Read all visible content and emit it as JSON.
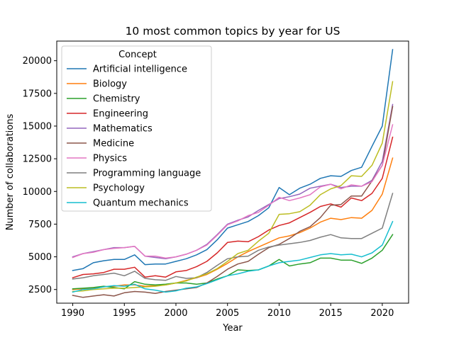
{
  "chart_data": {
    "type": "line",
    "title": "10 most common topics by year for US",
    "xlabel": "Year",
    "ylabel": "Number of collaborations",
    "xlim": [
      1988.45,
      2022.55
    ],
    "ylim": [
      1455,
      21500
    ],
    "xticks": [
      1990,
      1995,
      2000,
      2005,
      2010,
      2015,
      2020
    ],
    "yticks": [
      2500,
      5000,
      7500,
      10000,
      12500,
      15000,
      17500,
      20000
    ],
    "legend": {
      "title": "Concept",
      "position": "upper-left"
    },
    "grid": false,
    "x": [
      1990,
      1991,
      1992,
      1993,
      1994,
      1995,
      1996,
      1997,
      1998,
      1999,
      2000,
      2001,
      2002,
      2003,
      2004,
      2005,
      2006,
      2007,
      2008,
      2009,
      2010,
      2011,
      2012,
      2013,
      2014,
      2015,
      2016,
      2017,
      2018,
      2019,
      2020,
      2021
    ],
    "series": [
      {
        "name": "Artificial intelligence",
        "color": "#1f77b4",
        "values": [
          3950,
          4100,
          4550,
          4700,
          4800,
          4800,
          5150,
          4400,
          4450,
          4450,
          4650,
          4850,
          5150,
          5550,
          6300,
          7200,
          7450,
          7700,
          8150,
          8750,
          10300,
          9750,
          10250,
          10550,
          11000,
          11200,
          11150,
          11600,
          11850,
          13450,
          15000,
          20850
        ]
      },
      {
        "name": "Biology",
        "color": "#ff7f0e",
        "values": [
          2500,
          2550,
          2600,
          2700,
          2750,
          2850,
          2850,
          2750,
          2800,
          2850,
          3000,
          3200,
          3400,
          3650,
          4050,
          4500,
          5000,
          5400,
          5750,
          6100,
          6450,
          6600,
          6850,
          7200,
          7650,
          7950,
          7850,
          8000,
          7950,
          8550,
          9800,
          12550
        ]
      },
      {
        "name": "Chemistry",
        "color": "#2ca02c",
        "values": [
          2550,
          2600,
          2650,
          2750,
          2650,
          2550,
          3100,
          2900,
          2850,
          2900,
          3000,
          3000,
          2900,
          3000,
          3300,
          3550,
          4000,
          3950,
          4000,
          4300,
          4800,
          4300,
          4450,
          4550,
          4900,
          4900,
          4750,
          4750,
          4500,
          4900,
          5500,
          6700
        ]
      },
      {
        "name": "Engineering",
        "color": "#d62728",
        "values": [
          3400,
          3650,
          3700,
          3800,
          4050,
          4050,
          4200,
          3450,
          3550,
          3450,
          3850,
          3950,
          4250,
          4650,
          5300,
          6100,
          6200,
          6150,
          6550,
          7050,
          7400,
          7600,
          8000,
          8400,
          8850,
          9050,
          8800,
          9500,
          9300,
          9850,
          11000,
          14150
        ]
      },
      {
        "name": "Mathematics",
        "color": "#9467bd",
        "values": [
          5000,
          5250,
          5400,
          5550,
          5700,
          5700,
          5800,
          5050,
          4950,
          4850,
          5000,
          5200,
          5500,
          5950,
          6700,
          7500,
          7800,
          8050,
          8550,
          9000,
          9450,
          9600,
          9800,
          10250,
          10400,
          10550,
          10300,
          10400,
          10400,
          10850,
          12300,
          16650
        ]
      },
      {
        "name": "Medicine",
        "color": "#8c564b",
        "values": [
          2050,
          1900,
          2000,
          2100,
          2000,
          2250,
          2350,
          2300,
          2200,
          2350,
          2450,
          2550,
          2650,
          3000,
          3500,
          4050,
          4450,
          4650,
          5200,
          5700,
          5950,
          6400,
          6950,
          7300,
          8000,
          8950,
          9000,
          9650,
          9650,
          10800,
          12000,
          16500
        ]
      },
      {
        "name": "Physics",
        "color": "#e377c2",
        "values": [
          4950,
          5250,
          5350,
          5550,
          5650,
          5700,
          5800,
          5050,
          5050,
          4900,
          5000,
          5200,
          5500,
          5900,
          6650,
          7450,
          7750,
          8150,
          8400,
          8950,
          9550,
          9300,
          9500,
          9750,
          10350,
          10550,
          10200,
          10500,
          10400,
          10750,
          12000,
          15100
        ]
      },
      {
        "name": "Programming language",
        "color": "#7f7f7f",
        "values": [
          3300,
          3400,
          3550,
          3650,
          3750,
          3550,
          3900,
          3350,
          3250,
          3200,
          3500,
          3350,
          3400,
          3800,
          4350,
          4850,
          5000,
          5050,
          5500,
          5750,
          5900,
          6000,
          6100,
          6250,
          6500,
          6700,
          6450,
          6400,
          6400,
          6800,
          7200,
          9850
        ]
      },
      {
        "name": "Psychology",
        "color": "#bcbd22",
        "values": [
          2350,
          2400,
          2500,
          2550,
          2600,
          2600,
          2650,
          2700,
          2750,
          2850,
          3000,
          3150,
          3450,
          3700,
          4100,
          4650,
          5250,
          5500,
          6200,
          6800,
          8250,
          8300,
          8450,
          8950,
          9750,
          10200,
          10450,
          11200,
          11150,
          12000,
          13700,
          18400
        ]
      },
      {
        "name": "Quantum mechanics",
        "color": "#17becf",
        "values": [
          2300,
          2500,
          2550,
          2700,
          2800,
          2750,
          2900,
          2550,
          2450,
          2300,
          2400,
          2600,
          2700,
          2950,
          3250,
          3550,
          3700,
          3900,
          4000,
          4300,
          4550,
          4650,
          4750,
          4950,
          5150,
          5250,
          5150,
          5200,
          5000,
          5300,
          5900,
          7700
        ]
      }
    ]
  }
}
